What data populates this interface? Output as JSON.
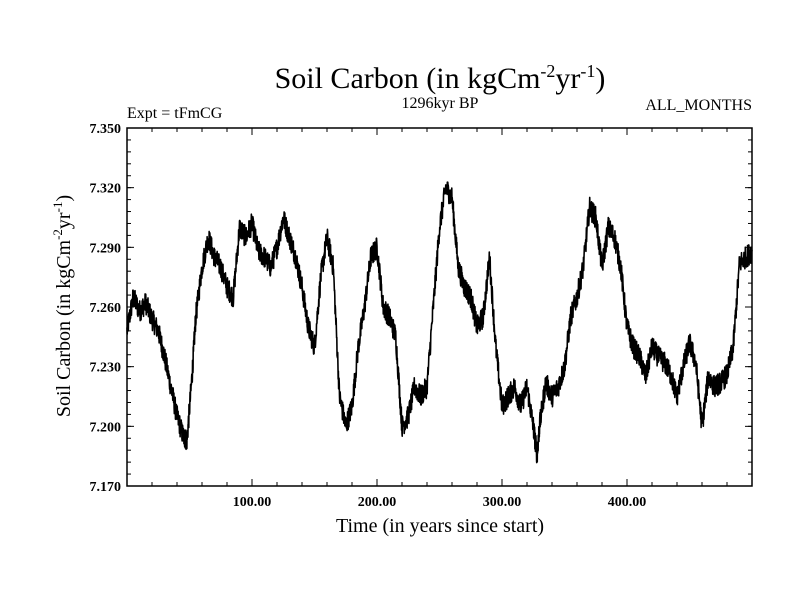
{
  "chart_data": {
    "type": "line",
    "title": "Soil Carbon (in kgCm",
    "title_sup1": "-2",
    "title_mid": "yr",
    "title_sup2": "-1",
    "title_end": ")",
    "subtitle_left": "Expt = tFmCG",
    "subtitle_center": "1296kyr BP",
    "subtitle_right": "ALL_MONTHS",
    "xlabel": "Time (in years since start)",
    "ylabel": "Soil Carbon (in kgCm",
    "ylabel_sup1": "-2",
    "ylabel_mid": "yr",
    "ylabel_sup2": "-1",
    "ylabel_end": ")",
    "xlim": [
      0,
      500
    ],
    "ylim": [
      7.17,
      7.35
    ],
    "xticks": [
      100,
      200,
      300,
      400
    ],
    "xtick_labels": [
      "100.00",
      "200.00",
      "300.00",
      "400.00"
    ],
    "yticks": [
      7.17,
      7.2,
      7.23,
      7.26,
      7.29,
      7.32,
      7.35
    ],
    "ytick_labels": [
      "7.170",
      "7.200",
      "7.230",
      "7.260",
      "7.290",
      "7.320",
      "7.350"
    ],
    "series": [
      {
        "name": "Soil Carbon",
        "color": "#000000",
        "x": [
          0,
          5,
          10,
          15,
          20,
          25,
          30,
          35,
          40,
          45,
          48,
          52,
          55,
          60,
          65,
          70,
          75,
          80,
          85,
          90,
          95,
          100,
          105,
          110,
          115,
          120,
          125,
          130,
          135,
          140,
          145,
          150,
          155,
          160,
          165,
          170,
          175,
          180,
          185,
          190,
          195,
          200,
          205,
          210,
          215,
          220,
          225,
          230,
          235,
          240,
          245,
          250,
          255,
          260,
          265,
          270,
          275,
          280,
          285,
          290,
          295,
          300,
          305,
          310,
          315,
          320,
          325,
          328,
          330,
          335,
          340,
          345,
          350,
          355,
          360,
          365,
          370,
          375,
          380,
          385,
          390,
          395,
          400,
          405,
          410,
          415,
          420,
          425,
          430,
          435,
          440,
          445,
          450,
          455,
          460,
          465,
          470,
          475,
          480,
          485,
          490,
          495,
          500
        ],
        "y": [
          7.248,
          7.265,
          7.258,
          7.262,
          7.254,
          7.248,
          7.235,
          7.22,
          7.205,
          7.195,
          7.193,
          7.225,
          7.255,
          7.28,
          7.295,
          7.285,
          7.28,
          7.27,
          7.265,
          7.3,
          7.295,
          7.302,
          7.288,
          7.285,
          7.28,
          7.29,
          7.305,
          7.295,
          7.285,
          7.27,
          7.25,
          7.24,
          7.275,
          7.295,
          7.28,
          7.215,
          7.2,
          7.21,
          7.24,
          7.26,
          7.285,
          7.29,
          7.26,
          7.255,
          7.245,
          7.2,
          7.205,
          7.22,
          7.215,
          7.22,
          7.26,
          7.3,
          7.32,
          7.315,
          7.28,
          7.27,
          7.265,
          7.25,
          7.255,
          7.285,
          7.24,
          7.21,
          7.215,
          7.22,
          7.21,
          7.22,
          7.2,
          7.186,
          7.2,
          7.222,
          7.215,
          7.22,
          7.23,
          7.255,
          7.265,
          7.28,
          7.31,
          7.305,
          7.28,
          7.3,
          7.295,
          7.28,
          7.25,
          7.24,
          7.235,
          7.225,
          7.24,
          7.235,
          7.232,
          7.226,
          7.215,
          7.23,
          7.242,
          7.232,
          7.2,
          7.225,
          7.22,
          7.222,
          7.226,
          7.24,
          7.282,
          7.285,
          7.288
        ]
      }
    ]
  }
}
